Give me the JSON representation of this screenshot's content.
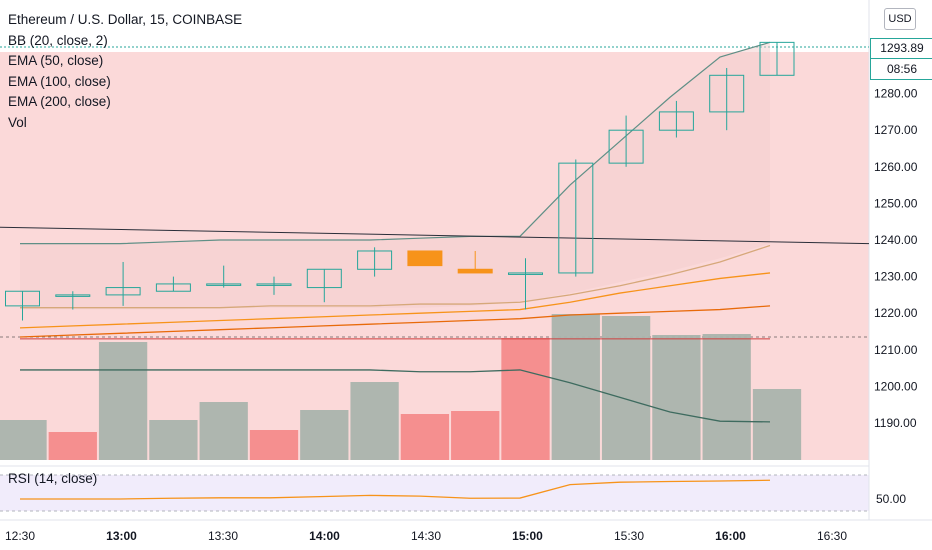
{
  "header": {
    "title": "Ethereum / U.S. Dollar, 15, COINBASE",
    "indicators": [
      "BB (20, close, 2)",
      "EMA (50, close)",
      "EMA (100, close)",
      "EMA (200, close)",
      "Vol"
    ],
    "rsi_label": "RSI (14, close)",
    "currency": "USD"
  },
  "price_badge": {
    "price": "1293.89",
    "countdown": "08:56"
  },
  "colors": {
    "up": "#26a69a",
    "down": "#f7931a",
    "bb_fill": "#fbd9d9",
    "bb_basis": "#5f9a8d",
    "ema50": "#f7931a",
    "ema100": "#e86a0a",
    "ema200": "#d6a87a",
    "vol_up": "#aab4ad",
    "vol_down": "#f48b8b"
  },
  "chart_data": {
    "type": "candlestick",
    "x": [
      "12:30",
      "12:45",
      "13:00",
      "13:15",
      "13:30",
      "13:45",
      "14:00",
      "14:15",
      "14:30",
      "14:45",
      "15:00",
      "15:15",
      "15:30",
      "15:45",
      "16:00",
      "16:15"
    ],
    "xticks": [
      "12:30",
      "13:00",
      "13:30",
      "14:00",
      "14:30",
      "15:00",
      "15:30",
      "16:00",
      "16:30"
    ],
    "yticks": [
      1190,
      1200,
      1210,
      1220,
      1230,
      1240,
      1250,
      1260,
      1270,
      1280
    ],
    "ylim": [
      1180,
      1300
    ],
    "candles": [
      {
        "o": 1222,
        "h": 1226,
        "l": 1218,
        "c": 1226
      },
      {
        "o": 1225,
        "h": 1226,
        "l": 1221,
        "c": 1225
      },
      {
        "o": 1225,
        "h": 1234,
        "l": 1222,
        "c": 1227
      },
      {
        "o": 1226,
        "h": 1230,
        "l": 1226,
        "c": 1228
      },
      {
        "o": 1228,
        "h": 1233,
        "l": 1227,
        "c": 1228
      },
      {
        "o": 1228,
        "h": 1230,
        "l": 1225,
        "c": 1228
      },
      {
        "o": 1227,
        "h": 1232,
        "l": 1223,
        "c": 1232
      },
      {
        "o": 1232,
        "h": 1238,
        "l": 1230,
        "c": 1237
      },
      {
        "o": 1237,
        "h": 1237,
        "l": 1233,
        "c": 1233
      },
      {
        "o": 1232,
        "h": 1237,
        "l": 1231,
        "c": 1231
      },
      {
        "o": 1231,
        "h": 1235,
        "l": 1221,
        "c": 1231
      },
      {
        "o": 1231,
        "h": 1262,
        "l": 1230,
        "c": 1261
      },
      {
        "o": 1261,
        "h": 1274,
        "l": 1260,
        "c": 1270
      },
      {
        "o": 1270,
        "h": 1278,
        "l": 1268,
        "c": 1275
      },
      {
        "o": 1275,
        "h": 1287,
        "l": 1270,
        "c": 1285
      },
      {
        "o": 1285,
        "h": 1294,
        "l": 1285,
        "c": 1294
      }
    ],
    "bb_upper": [
      1239,
      1239,
      1239,
      1239.5,
      1240,
      1240,
      1240,
      1240,
      1240.5,
      1241,
      1241,
      1255,
      1267,
      1279,
      1290,
      1294
    ],
    "bb_basis": [
      1221,
      1221,
      1221,
      1221,
      1221.5,
      1221.5,
      1221.5,
      1221.5,
      1221.5,
      1222,
      1223,
      1225.5,
      1228.5,
      1231.5,
      1235,
      1239
    ],
    "bb_lower": [
      1213,
      1213,
      1213,
      1213,
      1213,
      1213,
      1213,
      1213,
      1213,
      1213,
      1213,
      1213,
      1213,
      1213,
      1213,
      1213
    ],
    "ema50": [
      1216,
      1216.5,
      1217,
      1217.5,
      1218,
      1218.5,
      1219,
      1219.5,
      1220,
      1220.5,
      1221,
      1223,
      1225.5,
      1227.5,
      1229.5,
      1231
    ],
    "ema100": [
      1213.5,
      1214,
      1214.5,
      1215,
      1215.5,
      1216,
      1216.5,
      1217,
      1217.5,
      1218,
      1218.5,
      1219.5,
      1220,
      1220.5,
      1221,
      1222
    ],
    "ema200": [
      1221.5,
      1221.5,
      1221.5,
      1221.5,
      1221.5,
      1222,
      1222,
      1222,
      1222.5,
      1222.5,
      1223,
      1225,
      1227.5,
      1230.5,
      1234,
      1238.5
    ],
    "trendline": {
      "from": 1243.5,
      "to": 1239
    },
    "volume": [
      {
        "v": 40,
        "dir": "up"
      },
      {
        "v": 28,
        "dir": "down"
      },
      {
        "v": 118,
        "dir": "up"
      },
      {
        "v": 40,
        "dir": "up"
      },
      {
        "v": 58,
        "dir": "up"
      },
      {
        "v": 30,
        "dir": "down"
      },
      {
        "v": 50,
        "dir": "up"
      },
      {
        "v": 78,
        "dir": "up"
      },
      {
        "v": 46,
        "dir": "down"
      },
      {
        "v": 49,
        "dir": "down"
      },
      {
        "v": 122,
        "dir": "down"
      },
      {
        "v": 146,
        "dir": "up"
      },
      {
        "v": 144,
        "dir": "up"
      },
      {
        "v": 125,
        "dir": "up"
      },
      {
        "v": 126,
        "dir": "up"
      },
      {
        "v": 71,
        "dir": "up"
      }
    ],
    "volume_ma": [
      1204.5,
      1204.5,
      1204.5,
      1204.5,
      1204.5,
      1204.5,
      1204.5,
      1204.5,
      1204,
      1204,
      1204.5,
      1201,
      1197,
      1193,
      1190.5,
      1190.3
    ],
    "rsi": [
      50,
      50,
      50,
      50.3,
      50.5,
      50.5,
      51,
      51.5,
      51.2,
      50.3,
      50.4,
      56,
      57,
      57.3,
      57.5,
      57.8
    ],
    "rsi_yticks": [
      50
    ],
    "rsi_ylim": [
      40,
      60
    ]
  }
}
